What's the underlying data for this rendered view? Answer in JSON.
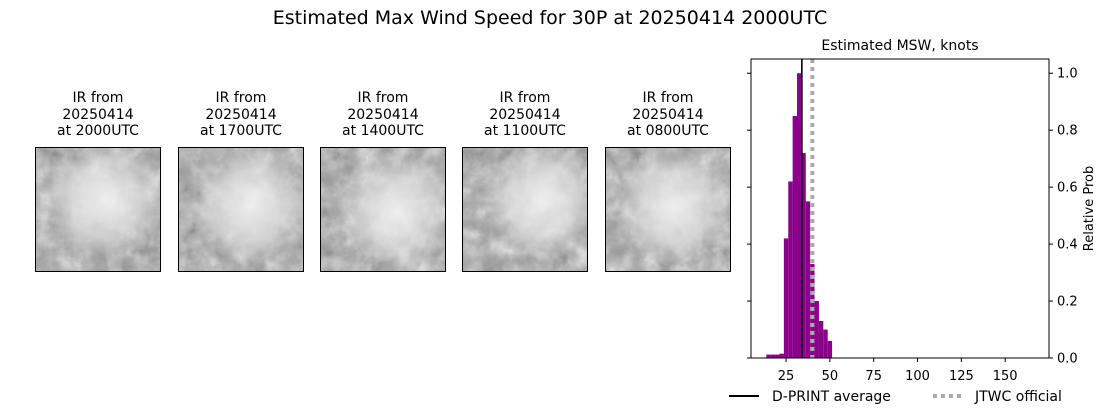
{
  "title": "Estimated Max Wind Speed for 30P at 20250414 2000UTC",
  "panels": [
    {
      "title": "IR from\n20250414\nat 2000UTC"
    },
    {
      "title": "IR from\n20250414\nat 1700UTC"
    },
    {
      "title": "IR from\n20250414\nat 1400UTC"
    },
    {
      "title": "IR from\n20250414\nat 1100UTC"
    },
    {
      "title": "IR from\n20250414\nat 0800UTC"
    }
  ],
  "chart_data": {
    "type": "bar",
    "title": "Estimated MSW, knots",
    "ylabel": "Relative Prob",
    "xlabel": "",
    "xlim": [
      5,
      175
    ],
    "ylim": [
      0,
      1.05
    ],
    "xticks": [
      25,
      50,
      75,
      100,
      125,
      150
    ],
    "yticks": [
      0.0,
      0.2,
      0.4,
      0.6,
      0.8,
      1.0
    ],
    "bin_width": 2.5,
    "bars": [
      {
        "x": 15.0,
        "value": 0.012
      },
      {
        "x": 17.5,
        "value": 0.012
      },
      {
        "x": 20.0,
        "value": 0.012
      },
      {
        "x": 22.5,
        "value": 0.015
      },
      {
        "x": 25.0,
        "value": 0.42
      },
      {
        "x": 27.5,
        "value": 0.62
      },
      {
        "x": 30.0,
        "value": 0.85
      },
      {
        "x": 32.5,
        "value": 1.0
      },
      {
        "x": 35.0,
        "value": 0.72
      },
      {
        "x": 37.5,
        "value": 0.55
      },
      {
        "x": 40.0,
        "value": 0.33
      },
      {
        "x": 42.5,
        "value": 0.2
      },
      {
        "x": 45.0,
        "value": 0.13
      },
      {
        "x": 47.5,
        "value": 0.1
      },
      {
        "x": 50.0,
        "value": 0.06
      }
    ],
    "dprint_average": 34,
    "jtwc_official": 40,
    "legend": [
      {
        "label": "D-PRINT average",
        "style": "solid",
        "color": "#000000"
      },
      {
        "label": "JTWC official",
        "style": "dotted",
        "color": "#aaaaaa"
      }
    ],
    "bar_color": "#8b008b",
    "legend_position": "bottom-right"
  }
}
